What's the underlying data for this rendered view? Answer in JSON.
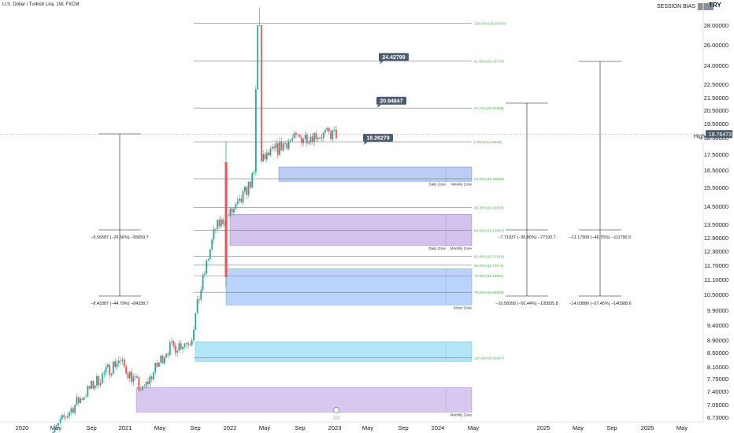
{
  "header": {
    "symbol": "U.S. Dollar / Turkish Lira, 1W, FXCM",
    "session_label": "SESSION BIAS",
    "currency": "TRY"
  },
  "price_axis": {
    "ticks": [
      "28.00000",
      "26.00000",
      "24.00000",
      "22.50000",
      "21.50000",
      "20.50000",
      "19.50000",
      "18.50000",
      "17.50000",
      "16.50000",
      "15.50000",
      "14.50000",
      "13.50000",
      "12.90000",
      "12.30000",
      "11.70000",
      "11.10000",
      "10.50000",
      "9.90000",
      "9.40000",
      "8.90000",
      "8.50000",
      "8.10000",
      "7.75000",
      "7.40000",
      "7.05000",
      "6.73000"
    ],
    "high_label": "High",
    "high_value": "18.80785",
    "last_value": "18.76473"
  },
  "time_axis": {
    "ticks": [
      "2020",
      "May",
      "Sep",
      "2021",
      "May",
      "Sep",
      "2022",
      "May",
      "Sep",
      "2023",
      "May",
      "Sep",
      "2024",
      "May",
      "2025",
      "May",
      "Sep",
      "2026",
      "May"
    ]
  },
  "fib_levels": [
    {
      "label": "100.00%(28.20745)",
      "price": 28.20745
    },
    {
      "label": "61.80%(24.43779)",
      "price": 24.43779
    },
    {
      "label": "27.22%(20.67806)",
      "price": 20.67806
    },
    {
      "label": "0.00%(18.25836)",
      "price": 18.25836
    },
    {
      "label": "23.60%(15.99840)",
      "price": 15.9984
    },
    {
      "label": "38.20%(14.43807)",
      "price": 14.43807
    },
    {
      "label": "50.00%(13.22807)",
      "price": 13.22807
    },
    {
      "label": "61.80%(12.07819)",
      "price": 12.07819
    },
    {
      "label": "65.00%(11.70573)",
      "price": 11.70573
    },
    {
      "label": "70.60%(11.25861)",
      "price": 11.25861
    },
    {
      "label": "78.60%(10.58800)",
      "price": 10.588
    },
    {
      "label": "100.00%(8.35867)",
      "price": 8.35867
    }
  ],
  "price_callouts": [
    {
      "label": "24.42799",
      "price": 24.42799
    },
    {
      "label": "20.94847",
      "price": 20.94847
    },
    {
      "label": "18.26279",
      "price": 18.26279
    }
  ],
  "zones": [
    {
      "label_left": "Daily Zone",
      "label_right": "Weekly Zone",
      "top": 16.7,
      "bottom": 15.85,
      "color": "#3b6fe0"
    },
    {
      "label_left": "Daily Zone",
      "label_right": "Monthly Zone",
      "top": 14.05,
      "bottom": 12.55,
      "color": "#7b52c9"
    },
    {
      "label_left": "",
      "label_right": "4hour Zone",
      "top": 11.55,
      "bottom": 10.1,
      "color": "#3b82f6"
    },
    {
      "label_left": "",
      "label_right": "",
      "top": 8.85,
      "bottom": 8.25,
      "color": "#22b8e6"
    },
    {
      "label_left": "",
      "label_right": "Monthly Zone",
      "top": 7.5,
      "bottom": 6.86,
      "color": "#8e5fd1"
    }
  ],
  "measures": [
    {
      "label_upper": "−5.56587 (−29.56%) −55659.7",
      "label_lower": "−8.43387 (−44.79%) −84338.7"
    },
    {
      "label_upper": "−7.71937 (−36.80%) −77193.7",
      "label_lower": "−10.58358 (−50.44%) −105835.8"
    },
    {
      "label_upper": "−11.17909 (−45.75%) −111790.9",
      "label_lower": "−14.03886 (−57.45%) −140388.6"
    }
  ],
  "colors": {
    "up": "#26a69a",
    "down": "#ef5350",
    "axis_text": "#131722",
    "fib_line": "#787b86",
    "fib_text": "#4caf50",
    "callout_bg": "#4a5c6e"
  },
  "chart_data": {
    "type": "candlestick",
    "title": "U.S. Dollar / Turkish Lira, 1W, FXCM",
    "ylim": [
      6.73,
      28.0
    ],
    "y_scale": "log",
    "x_range": [
      "2020-01",
      "2026-07"
    ],
    "series": [
      {
        "period": "2020-Q1",
        "close": 6.1
      },
      {
        "period": "2020-Q2",
        "close": 6.9
      },
      {
        "period": "2020-Q3",
        "close": 7.6
      },
      {
        "period": "2020-Q4",
        "close": 8.3
      },
      {
        "period": "2021-Q1",
        "close": 7.4
      },
      {
        "period": "2021-Q2",
        "close": 8.6
      },
      {
        "period": "2021-Q3",
        "close": 8.9
      },
      {
        "period": "2021-Q4",
        "close": 13.3
      },
      {
        "period": "2022-Q1",
        "close": 14.6
      },
      {
        "period": "2022-Q2",
        "close": 17.2
      },
      {
        "period": "2022-Q3",
        "close": 18.3
      },
      {
        "period": "2022-Q4",
        "close": 18.7
      },
      {
        "period": "2023-Q1",
        "close": 18.76
      }
    ],
    "high": 18.80785,
    "last": 18.76473
  }
}
